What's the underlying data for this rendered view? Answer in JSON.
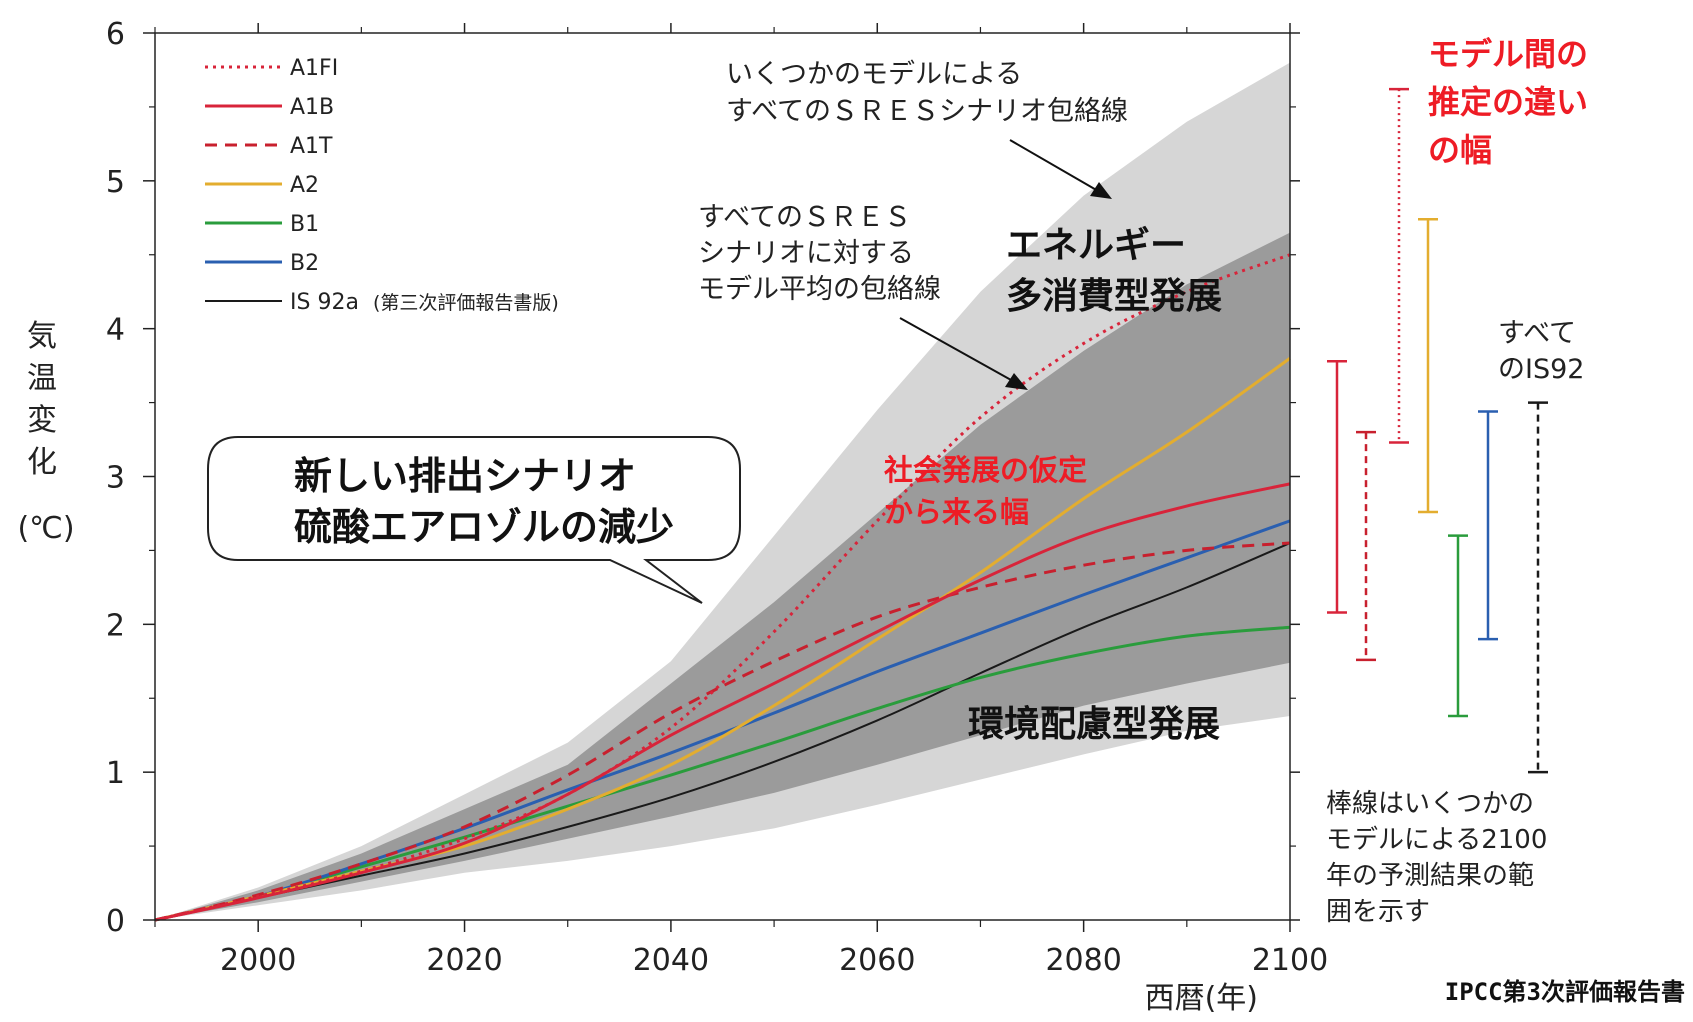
{
  "chart_data": {
    "type": "line",
    "xlabel": "西暦(年)",
    "ylabel_chars": [
      "気",
      "温",
      "変",
      "化"
    ],
    "ylabel_unit": "(℃)",
    "xlim": [
      1990,
      2100
    ],
    "ylim": [
      0,
      6
    ],
    "xticks": [
      2000,
      2020,
      2040,
      2060,
      2080,
      2100
    ],
    "yticks": [
      0,
      1,
      2,
      3,
      4,
      5,
      6
    ],
    "colors": {
      "A1FI": "#d8243a",
      "A1B": "#d8243a",
      "A1T": "#c8202e",
      "A2": "#e3ad2f",
      "B1": "#2a9c3c",
      "B2": "#2a5fb0",
      "IS92a": "#1a1a1a",
      "outer_envelope": "#d6d6d6",
      "inner_envelope": "#9b9b9b"
    },
    "legend": [
      {
        "key": "A1FI",
        "label": "A1FI",
        "style": "dotted"
      },
      {
        "key": "A1B",
        "label": "A1B",
        "style": "solid"
      },
      {
        "key": "A1T",
        "label": "A1T",
        "style": "dashed"
      },
      {
        "key": "A2",
        "label": "A2",
        "style": "solid"
      },
      {
        "key": "B1",
        "label": "B1",
        "style": "solid"
      },
      {
        "key": "B2",
        "label": "B2",
        "style": "solid"
      },
      {
        "key": "IS92a",
        "label": "IS 92a",
        "sublabel": "(第三次評価報告書版)",
        "style": "thin"
      }
    ],
    "x": [
      1990,
      2000,
      2010,
      2020,
      2030,
      2040,
      2050,
      2060,
      2070,
      2080,
      2090,
      2100
    ],
    "series": [
      {
        "name": "A1FI",
        "values": [
          0,
          0.16,
          0.33,
          0.55,
          0.85,
          1.3,
          1.95,
          2.7,
          3.4,
          3.9,
          4.25,
          4.5
        ]
      },
      {
        "name": "A1B",
        "values": [
          0,
          0.15,
          0.32,
          0.52,
          0.85,
          1.25,
          1.6,
          1.95,
          2.3,
          2.6,
          2.8,
          2.95
        ]
      },
      {
        "name": "A1T",
        "values": [
          0,
          0.17,
          0.38,
          0.63,
          0.98,
          1.4,
          1.75,
          2.05,
          2.25,
          2.4,
          2.5,
          2.55
        ]
      },
      {
        "name": "A2",
        "values": [
          0,
          0.16,
          0.33,
          0.5,
          0.75,
          1.05,
          1.45,
          1.9,
          2.35,
          2.85,
          3.3,
          3.8
        ]
      },
      {
        "name": "B1",
        "values": [
          0,
          0.16,
          0.36,
          0.56,
          0.77,
          0.98,
          1.2,
          1.43,
          1.64,
          1.8,
          1.92,
          1.98
        ]
      },
      {
        "name": "B2",
        "values": [
          0,
          0.16,
          0.38,
          0.62,
          0.88,
          1.13,
          1.4,
          1.68,
          1.94,
          2.2,
          2.45,
          2.7
        ]
      },
      {
        "name": "IS92a",
        "values": [
          0,
          0.15,
          0.3,
          0.45,
          0.63,
          0.83,
          1.07,
          1.35,
          1.67,
          1.98,
          2.25,
          2.55
        ]
      }
    ],
    "outer_envelope": {
      "upper": [
        0,
        0.22,
        0.5,
        0.85,
        1.2,
        1.75,
        2.6,
        3.45,
        4.25,
        4.9,
        5.4,
        5.8
      ],
      "lower": [
        0,
        0.1,
        0.2,
        0.32,
        0.4,
        0.5,
        0.62,
        0.78,
        0.95,
        1.12,
        1.28,
        1.38
      ]
    },
    "inner_envelope": {
      "upper": [
        0,
        0.2,
        0.45,
        0.75,
        1.05,
        1.6,
        2.15,
        2.75,
        3.35,
        3.85,
        4.3,
        4.65
      ]
    },
    "inner_envelope_lower": [
      0,
      0.12,
      0.26,
      0.4,
      0.55,
      0.7,
      0.86,
      1.05,
      1.25,
      1.45,
      1.6,
      1.74
    ],
    "range_bars": [
      {
        "name": "A1B",
        "low": 2.08,
        "high": 3.78,
        "style": "solid"
      },
      {
        "name": "A1T",
        "low": 1.76,
        "high": 3.3,
        "style": "dashed"
      },
      {
        "name": "A1FI",
        "low": 3.23,
        "high": 5.62,
        "style": "dotted"
      },
      {
        "name": "A2",
        "low": 2.76,
        "high": 4.74,
        "style": "solid"
      },
      {
        "name": "B1",
        "low": 1.38,
        "high": 2.6,
        "style": "solid"
      },
      {
        "name": "B2",
        "low": 1.9,
        "high": 3.44,
        "style": "solid"
      },
      {
        "name": "IS92a",
        "low": 1.0,
        "high": 3.5,
        "style": "dashed"
      }
    ],
    "annotations": {
      "outer_label": [
        "いくつかのモデルによる",
        "すべてのＳＲＥＳシナリオ包絡線"
      ],
      "inner_label": [
        "すべてのＳＲＥＳ",
        "シナリオに対する",
        "モデル平均の包絡線"
      ],
      "energy": [
        "エネルギー",
        "多消費型発展"
      ],
      "environment": "環境配慮型発展",
      "social": [
        "社会発展の仮定",
        "から来る幅"
      ],
      "callout": [
        "新しい排出シナリオ",
        "硫酸エアロゾルの減少"
      ],
      "model_diff": [
        "モデル間の",
        "推定の違い",
        "の幅"
      ],
      "all_is92": [
        "すべて",
        "のIS92"
      ],
      "bar_note": [
        "棒線はいくつかの",
        "モデルによる2100",
        "年の予測結果の範",
        "囲を示す"
      ],
      "credit": "IPCC第3次評価報告書"
    }
  }
}
